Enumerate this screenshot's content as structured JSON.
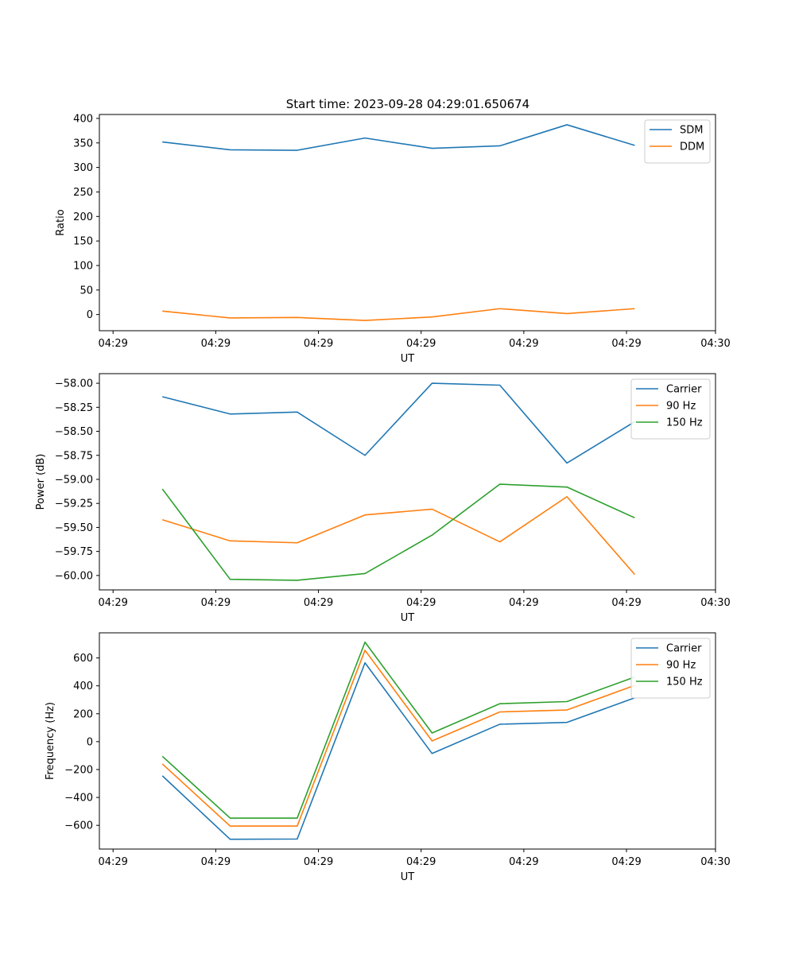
{
  "figure": {
    "title": "Start time: 2023-09-28 04:29:01.650674"
  },
  "chart_data": [
    {
      "type": "line",
      "title": "",
      "xlabel": "UT",
      "ylabel": "Ratio",
      "xlim": [
        0,
        9
      ],
      "ylim": [
        -33,
        408
      ],
      "xticks": [
        {
          "value": 0.2,
          "label": "04:29"
        },
        {
          "value": 1.7,
          "label": "04:29"
        },
        {
          "value": 3.2,
          "label": "04:29"
        },
        {
          "value": 4.7,
          "label": "04:29"
        },
        {
          "value": 6.2,
          "label": "04:29"
        },
        {
          "value": 7.7,
          "label": "04:29"
        },
        {
          "value": 9.0,
          "label": "04:30"
        }
      ],
      "yticks": [
        {
          "value": 400,
          "label": "400"
        },
        {
          "value": 350,
          "label": "350"
        },
        {
          "value": 300,
          "label": "300"
        },
        {
          "value": 250,
          "label": "250"
        },
        {
          "value": 200,
          "label": "200"
        },
        {
          "value": 150,
          "label": "150"
        },
        {
          "value": 100,
          "label": "100"
        },
        {
          "value": 50,
          "label": "50"
        },
        {
          "value": 0,
          "label": "0"
        }
      ],
      "legend_position": "top-right",
      "x": [
        0.92,
        1.91,
        2.89,
        3.88,
        4.86,
        5.85,
        6.83,
        7.82
      ],
      "series": [
        {
          "name": "SDM",
          "color": "#1f77b4",
          "values": [
            352,
            336,
            335,
            360,
            339,
            344,
            387,
            345
          ]
        },
        {
          "name": "DDM",
          "color": "#ff7f0e",
          "values": [
            7,
            -7,
            -6,
            -12,
            -5,
            12,
            2,
            12
          ]
        }
      ]
    },
    {
      "type": "line",
      "title": "",
      "xlabel": "UT",
      "ylabel": "Power (dB)",
      "xlim": [
        0,
        9
      ],
      "ylim": [
        -60.15,
        -57.9
      ],
      "xticks": [
        {
          "value": 0.2,
          "label": "04:29"
        },
        {
          "value": 1.7,
          "label": "04:29"
        },
        {
          "value": 3.2,
          "label": "04:29"
        },
        {
          "value": 4.7,
          "label": "04:29"
        },
        {
          "value": 6.2,
          "label": "04:29"
        },
        {
          "value": 7.7,
          "label": "04:29"
        },
        {
          "value": 9.0,
          "label": "04:30"
        }
      ],
      "yticks": [
        {
          "value": -58.0,
          "label": "−58.00"
        },
        {
          "value": -58.25,
          "label": "−58.25"
        },
        {
          "value": -58.5,
          "label": "−58.50"
        },
        {
          "value": -58.75,
          "label": "−58.75"
        },
        {
          "value": -59.0,
          "label": "−59.00"
        },
        {
          "value": -59.25,
          "label": "−59.25"
        },
        {
          "value": -59.5,
          "label": "−59.50"
        },
        {
          "value": -59.75,
          "label": "−59.75"
        },
        {
          "value": -60.0,
          "label": "−60.00"
        }
      ],
      "legend_position": "top-right",
      "x": [
        0.92,
        1.91,
        2.89,
        3.88,
        4.86,
        5.85,
        6.83,
        7.82
      ],
      "series": [
        {
          "name": "Carrier",
          "color": "#1f77b4",
          "values": [
            -58.14,
            -58.32,
            -58.3,
            -58.75,
            -58.0,
            -58.02,
            -58.83,
            -58.4
          ]
        },
        {
          "name": "90 Hz",
          "color": "#ff7f0e",
          "values": [
            -59.42,
            -59.64,
            -59.66,
            -59.37,
            -59.31,
            -59.65,
            -59.18,
            -59.99
          ]
        },
        {
          "name": "150 Hz",
          "color": "#2ca02c",
          "values": [
            -59.1,
            -60.04,
            -60.05,
            -59.98,
            -59.58,
            -59.05,
            -59.08,
            -59.4
          ]
        }
      ]
    },
    {
      "type": "line",
      "title": "",
      "xlabel": "UT",
      "ylabel": "Frequency (Hz)",
      "xlim": [
        0,
        9
      ],
      "ylim": [
        -770,
        780
      ],
      "xticks": [
        {
          "value": 0.2,
          "label": "04:29"
        },
        {
          "value": 1.7,
          "label": "04:29"
        },
        {
          "value": 3.2,
          "label": "04:29"
        },
        {
          "value": 4.7,
          "label": "04:29"
        },
        {
          "value": 6.2,
          "label": "04:29"
        },
        {
          "value": 7.7,
          "label": "04:29"
        },
        {
          "value": 9.0,
          "label": "04:30"
        }
      ],
      "yticks": [
        {
          "value": 600,
          "label": "600"
        },
        {
          "value": 400,
          "label": "400"
        },
        {
          "value": 200,
          "label": "200"
        },
        {
          "value": 0,
          "label": "0"
        },
        {
          "value": -200,
          "label": "−200"
        },
        {
          "value": -400,
          "label": "−400"
        },
        {
          "value": -600,
          "label": "−600"
        }
      ],
      "legend_position": "top-right",
      "x": [
        0.92,
        1.91,
        2.89,
        3.88,
        4.86,
        5.85,
        6.83,
        7.82
      ],
      "series": [
        {
          "name": "Carrier",
          "color": "#1f77b4",
          "values": [
            -245,
            -700,
            -698,
            565,
            -85,
            125,
            138,
            314
          ]
        },
        {
          "name": "90 Hz",
          "color": "#ff7f0e",
          "values": [
            -160,
            -605,
            -605,
            655,
            5,
            213,
            227,
            403
          ]
        },
        {
          "name": "150 Hz",
          "color": "#2ca02c",
          "values": [
            -105,
            -548,
            -548,
            713,
            62,
            272,
            287,
            463
          ]
        }
      ]
    }
  ]
}
